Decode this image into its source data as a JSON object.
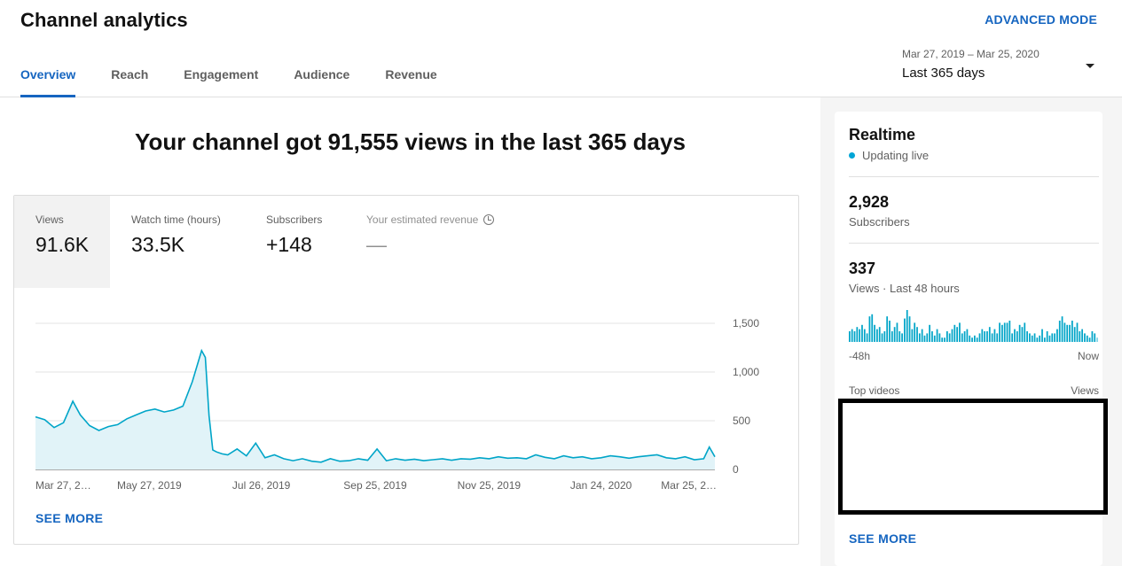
{
  "header": {
    "title": "Channel analytics",
    "advanced_mode": "ADVANCED MODE",
    "tabs": [
      {
        "label": "Overview",
        "active": true
      },
      {
        "label": "Reach",
        "active": false
      },
      {
        "label": "Engagement",
        "active": false
      },
      {
        "label": "Audience",
        "active": false
      },
      {
        "label": "Revenue",
        "active": false
      }
    ],
    "date_range": {
      "range": "Mar 27, 2019 – Mar 25, 2020",
      "label": "Last 365 days"
    }
  },
  "main": {
    "headline": "Your channel got 91,555 views in the last 365 days",
    "metrics": [
      {
        "label": "Views",
        "value": "91.6K",
        "selected": true
      },
      {
        "label": "Watch time (hours)",
        "value": "33.5K",
        "selected": false
      },
      {
        "label": "Subscribers",
        "value": "+148",
        "selected": false
      },
      {
        "label": "Your estimated revenue",
        "value": "—",
        "selected": false
      }
    ],
    "see_more": "SEE MORE"
  },
  "chart_data": {
    "type": "area",
    "title": "",
    "xlabel": "",
    "ylabel": "",
    "ylim": [
      0,
      1500
    ],
    "yticks": [
      "1,500",
      "1,000",
      "500",
      "0"
    ],
    "xticks": [
      "Mar 27, 2…",
      "May 27, 2019",
      "Jul 26, 2019",
      "Sep 25, 2019",
      "Nov 25, 2019",
      "Jan 24, 2020",
      "Mar 25, 2…"
    ],
    "x_start": "2019-03-27",
    "x_end": "2020-03-25",
    "grid": true,
    "series": [
      {
        "color": "#00a5c8",
        "x": [
          "2019-03-27",
          "2019-04-01",
          "2019-04-06",
          "2019-04-11",
          "2019-04-16",
          "2019-04-20",
          "2019-04-25",
          "2019-04-30",
          "2019-05-05",
          "2019-05-10",
          "2019-05-15",
          "2019-05-20",
          "2019-05-25",
          "2019-05-30",
          "2019-06-04",
          "2019-06-09",
          "2019-06-14",
          "2019-06-19",
          "2019-06-24",
          "2019-06-26",
          "2019-06-28",
          "2019-06-30",
          "2019-07-02",
          "2019-07-05",
          "2019-07-08",
          "2019-07-13",
          "2019-07-18",
          "2019-07-23",
          "2019-07-28",
          "2019-08-02",
          "2019-08-07",
          "2019-08-12",
          "2019-08-17",
          "2019-08-22",
          "2019-08-27",
          "2019-09-01",
          "2019-09-06",
          "2019-09-11",
          "2019-09-16",
          "2019-09-21",
          "2019-09-26",
          "2019-10-01",
          "2019-10-06",
          "2019-10-11",
          "2019-10-16",
          "2019-10-21",
          "2019-10-26",
          "2019-10-31",
          "2019-11-05",
          "2019-11-10",
          "2019-11-15",
          "2019-11-20",
          "2019-11-25",
          "2019-11-30",
          "2019-12-05",
          "2019-12-10",
          "2019-12-15",
          "2019-12-20",
          "2019-12-25",
          "2019-12-30",
          "2020-01-04",
          "2020-01-09",
          "2020-01-14",
          "2020-01-19",
          "2020-01-24",
          "2020-01-29",
          "2020-02-03",
          "2020-02-08",
          "2020-02-13",
          "2020-02-18",
          "2020-02-23",
          "2020-02-28",
          "2020-03-04",
          "2020-03-09",
          "2020-03-14",
          "2020-03-19",
          "2020-03-22",
          "2020-03-25"
        ],
        "values": [
          540,
          510,
          430,
          480,
          700,
          560,
          450,
          400,
          440,
          460,
          520,
          560,
          600,
          620,
          590,
          610,
          650,
          900,
          1220,
          1150,
          550,
          200,
          180,
          160,
          150,
          210,
          140,
          270,
          120,
          150,
          110,
          90,
          110,
          85,
          75,
          110,
          85,
          90,
          110,
          95,
          210,
          90,
          110,
          95,
          105,
          90,
          100,
          110,
          95,
          110,
          105,
          120,
          110,
          130,
          115,
          120,
          110,
          150,
          125,
          110,
          140,
          120,
          130,
          110,
          120,
          140,
          130,
          115,
          130,
          140,
          150,
          120,
          110,
          130,
          100,
          110,
          230,
          130
        ]
      }
    ]
  },
  "realtime": {
    "title": "Realtime",
    "status": "Updating live",
    "subscribers_value": "2,928",
    "subscribers_label": "Subscribers",
    "views_value": "337",
    "views_label": "Views · Last 48 hours",
    "axis_start": "-48h",
    "axis_end": "Now",
    "bars": [
      5,
      6,
      5,
      7,
      6,
      8,
      6,
      4,
      12,
      13,
      8,
      6,
      7,
      4,
      5,
      12,
      10,
      5,
      7,
      9,
      5,
      4,
      11,
      15,
      12,
      6,
      9,
      7,
      4,
      6,
      3,
      4,
      8,
      5,
      3,
      6,
      4,
      2,
      2,
      5,
      4,
      6,
      8,
      7,
      9,
      4,
      5,
      6,
      3,
      2,
      3,
      2,
      4,
      6,
      5,
      5,
      7,
      4,
      6,
      4,
      9,
      8,
      9,
      9,
      10,
      4,
      6,
      5,
      8,
      7,
      9,
      5,
      4,
      3,
      4,
      2,
      3,
      6,
      2,
      5,
      3,
      4,
      4,
      6,
      10,
      12,
      9,
      8,
      8,
      10,
      7,
      9,
      5,
      6,
      4,
      3,
      2,
      5,
      4,
      2
    ],
    "top_videos_label": "Top videos",
    "views_col_label": "Views",
    "see_more": "SEE MORE"
  }
}
